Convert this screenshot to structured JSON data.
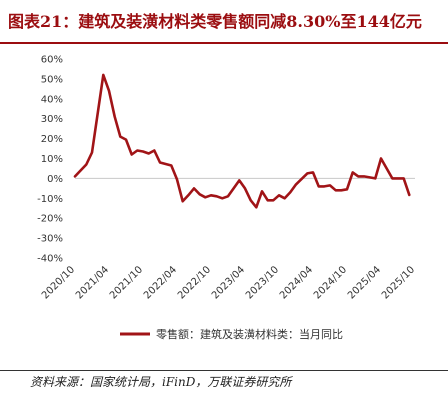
{
  "figure": {
    "title": "图表21：建筑及装潢材料类零售额同减8.30%至144亿元",
    "source": "资料来源：国家统计局，iFinD，万联证券研究所"
  },
  "colors": {
    "accent": "#9b0d10",
    "line": "#a11417"
  },
  "chart_data": {
    "type": "line",
    "title": "",
    "xlabel": "",
    "ylabel": "",
    "ylim": [
      -40,
      60
    ],
    "y_ticks": [
      "60%",
      "50%",
      "40%",
      "30%",
      "20%",
      "10%",
      "0%",
      "-10%",
      "-20%",
      "-30%",
      "-40%"
    ],
    "x_ticks": [
      "2020/10",
      "2021/04",
      "2021/10",
      "2022/04",
      "2022/10",
      "2023/04",
      "2023/10",
      "2024/04",
      "2024/10",
      "2025/04",
      "2025/10"
    ],
    "grid": false,
    "legend_position": "bottom",
    "series": [
      {
        "name": "零售额：建筑及装潢材料类：当月同比",
        "x": [
          "2020/10",
          "2020/11",
          "2020/12",
          "2021/01",
          "2021/03",
          "2021/04",
          "2021/05",
          "2021/06",
          "2021/07",
          "2021/08",
          "2021/09",
          "2021/10",
          "2021/11",
          "2021/12",
          "2022/01",
          "2022/03",
          "2022/04",
          "2022/05",
          "2022/06",
          "2022/07",
          "2022/08",
          "2022/09",
          "2022/10",
          "2022/11",
          "2022/12",
          "2023/01",
          "2023/03",
          "2023/04",
          "2023/05",
          "2023/06",
          "2023/07",
          "2023/08",
          "2023/09",
          "2023/10",
          "2023/11",
          "2023/12",
          "2024/01",
          "2024/03",
          "2024/04",
          "2024/05",
          "2024/06",
          "2024/07",
          "2024/08",
          "2024/09",
          "2024/10",
          "2024/11",
          "2024/12",
          "2025/01",
          "2025/03",
          "2025/04",
          "2025/05",
          "2025/06",
          "2025/07",
          "2025/08",
          "2025/09"
        ],
        "values": [
          1,
          4,
          7,
          13,
          52,
          44,
          31,
          21,
          19.5,
          12,
          14,
          13.5,
          12.5,
          14,
          8,
          6.5,
          -0.5,
          -11.5,
          -8.5,
          -5,
          -8,
          -9.5,
          -8.5,
          -9,
          -10,
          -9,
          -1,
          -5,
          -11,
          -14.5,
          -6.5,
          -11,
          -11,
          -8.5,
          -10,
          -7,
          -3,
          2.5,
          3,
          -4,
          -4,
          -3.5,
          -6,
          -6,
          -5.5,
          3,
          1,
          1,
          0,
          10,
          5,
          0,
          0,
          0,
          -8.3
        ]
      }
    ]
  }
}
